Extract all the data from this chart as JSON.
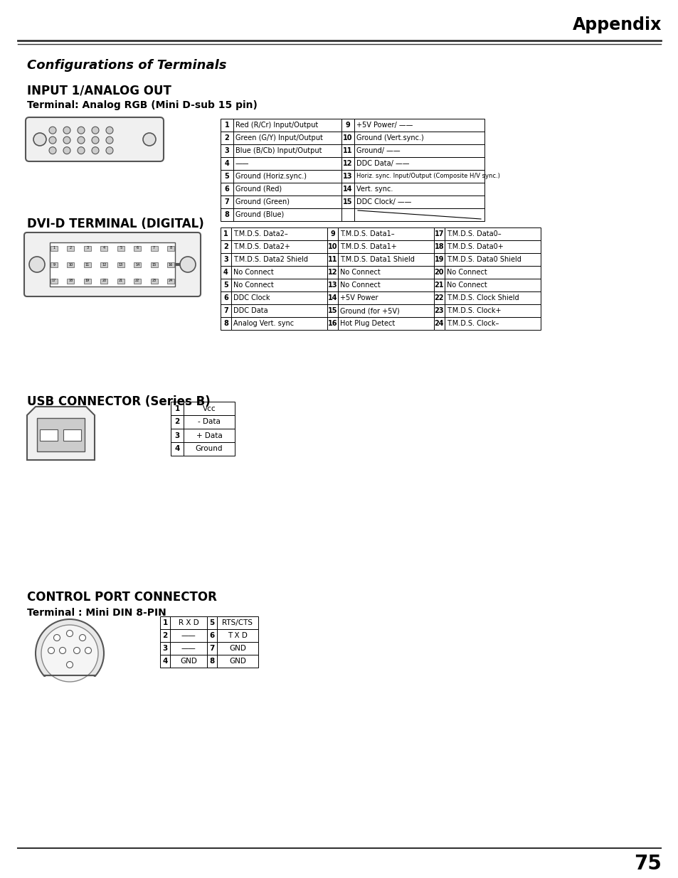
{
  "page_bg": "#ffffff",
  "header_title": "Appendix",
  "section1_title": "Configurations of Terminals",
  "section2_title": "INPUT 1/ANALOG OUT",
  "section2_subtitle": "Terminal: Analog RGB (Mini D-sub 15 pin)",
  "analog_left": [
    [
      "1",
      "Red (R/Cr) Input/Output"
    ],
    [
      "2",
      "Green (G/Y) Input/Output"
    ],
    [
      "3",
      "Blue (B/Cb) Input/Output"
    ],
    [
      "4",
      "——"
    ],
    [
      "5",
      "Ground (Horiz.sync.)"
    ],
    [
      "6",
      "Ground (Red)"
    ],
    [
      "7",
      "Ground (Green)"
    ],
    [
      "8",
      "Ground (Blue)"
    ]
  ],
  "analog_right": [
    [
      "9",
      "+5V Power/ ——"
    ],
    [
      "10",
      "Ground (Vert.sync.)"
    ],
    [
      "11",
      "Ground/ ——"
    ],
    [
      "12",
      "DDC Data/ ——"
    ],
    [
      "13",
      "Horiz. sync. Input/Output (Composite H/V sync.)"
    ],
    [
      "14",
      "Vert. sync."
    ],
    [
      "15",
      "DDC Clock/ ——"
    ],
    [
      "",
      ""
    ]
  ],
  "dvi_title": "DVI-D TERMINAL (DIGITAL)",
  "dvi_col1": [
    [
      "1",
      "T.M.D.S. Data2–"
    ],
    [
      "2",
      "T.M.D.S. Data2+"
    ],
    [
      "3",
      "T.M.D.S. Data2 Shield"
    ],
    [
      "4",
      "No Connect"
    ],
    [
      "5",
      "No Connect"
    ],
    [
      "6",
      "DDC Clock"
    ],
    [
      "7",
      "DDC Data"
    ],
    [
      "8",
      "Analog Vert. sync"
    ]
  ],
  "dvi_col2": [
    [
      "9",
      "T.M.D.S. Data1–"
    ],
    [
      "10",
      "T.M.D.S. Data1+"
    ],
    [
      "11",
      "T.M.D.S. Data1 Shield"
    ],
    [
      "12",
      "No Connect"
    ],
    [
      "13",
      "No Connect"
    ],
    [
      "14",
      "+5V Power"
    ],
    [
      "15",
      "Ground (for +5V)"
    ],
    [
      "16",
      "Hot Plug Detect"
    ]
  ],
  "dvi_col3": [
    [
      "17",
      "T.M.D.S. Data0–"
    ],
    [
      "18",
      "T.M.D.S. Data0+"
    ],
    [
      "19",
      "T.M.D.S. Data0 Shield"
    ],
    [
      "20",
      "No Connect"
    ],
    [
      "21",
      "No Connect"
    ],
    [
      "22",
      "T.M.D.S. Clock Shield"
    ],
    [
      "23",
      "T.M.D.S. Clock+"
    ],
    [
      "24",
      "T.M.D.S. Clock–"
    ]
  ],
  "usb_title": "USB CONNECTOR (Series B)",
  "usb_table": [
    [
      "1",
      "Vcc"
    ],
    [
      "2",
      "- Data"
    ],
    [
      "3",
      "+ Data"
    ],
    [
      "4",
      "Ground"
    ]
  ],
  "control_title": "CONTROL PORT CONNECTOR",
  "control_subtitle": "Terminal : Mini DIN 8-PIN",
  "ctrl_left": [
    [
      "1",
      "R X D"
    ],
    [
      "2",
      "——"
    ],
    [
      "3",
      "——"
    ],
    [
      "4",
      "GND"
    ]
  ],
  "ctrl_right": [
    [
      "5",
      "RTS/CTS"
    ],
    [
      "6",
      "T X D"
    ],
    [
      "7",
      "GND"
    ],
    [
      "8",
      "GND"
    ]
  ],
  "page_number": "75"
}
